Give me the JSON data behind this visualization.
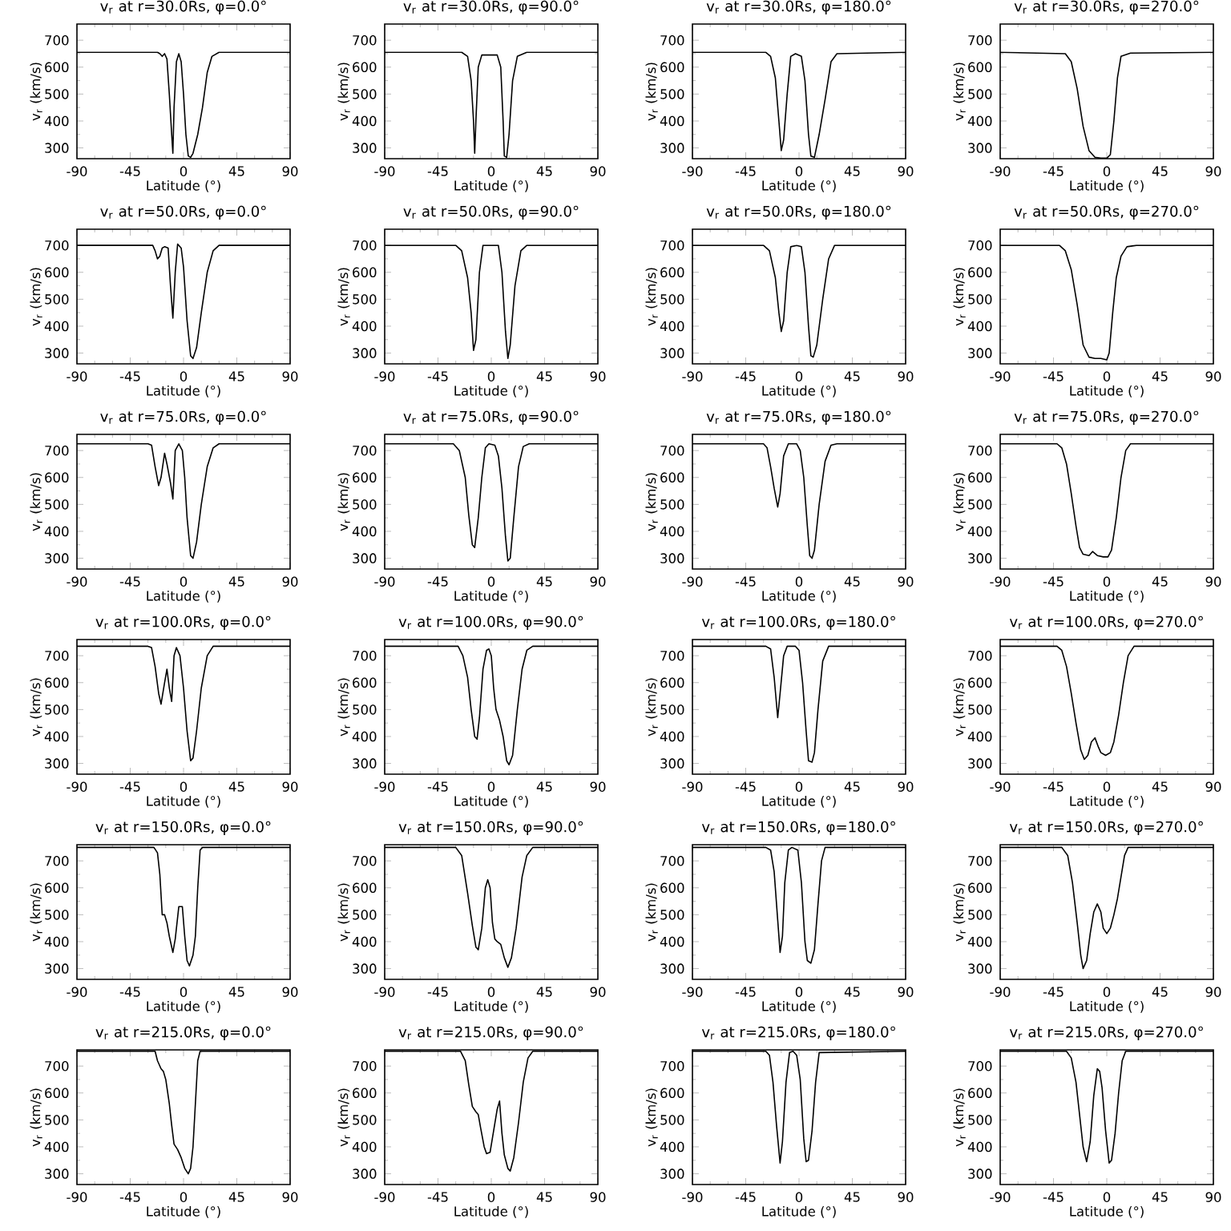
{
  "chart_data": [
    {
      "type": "line",
      "title": "v$_{r}$ at r=30.0Rs, φ=0.0°",
      "xlabel": "Latitude (°)",
      "ylabel": "v$_{r}$ (km/s)",
      "xlim": [
        -90,
        90
      ],
      "ylim": [
        260,
        760
      ],
      "xticks": [
        -90,
        -45,
        0,
        45,
        90
      ],
      "yticks": [
        300,
        400,
        500,
        600,
        700
      ],
      "color": "#000000",
      "x": [
        -90,
        -22,
        -20,
        -18,
        -16,
        -14,
        -12,
        -10,
        -9,
        -8,
        -6,
        -4,
        -2,
        0,
        2,
        4,
        6,
        8,
        12,
        16,
        20,
        24,
        30,
        90
      ],
      "values": [
        655,
        655,
        650,
        640,
        650,
        630,
        500,
        350,
        280,
        450,
        620,
        650,
        620,
        500,
        350,
        270,
        265,
        280,
        350,
        450,
        580,
        640,
        655,
        655
      ]
    },
    {
      "type": "line",
      "title": "v$_{r}$ at r=30.0Rs, φ=90.0°",
      "xlabel": "Latitude (°)",
      "ylabel": "v$_{r}$ (km/s)",
      "xlim": [
        -90,
        90
      ],
      "ylim": [
        260,
        760
      ],
      "xticks": [
        -90,
        -45,
        0,
        45,
        90
      ],
      "yticks": [
        300,
        400,
        500,
        600,
        700
      ],
      "color": "#000000",
      "x": [
        -90,
        -25,
        -20,
        -17,
        -15,
        -14,
        -13,
        -11,
        -8,
        5,
        8,
        10,
        11,
        13,
        15,
        18,
        22,
        30,
        90
      ],
      "values": [
        655,
        655,
        640,
        550,
        400,
        280,
        400,
        600,
        645,
        645,
        600,
        400,
        270,
        265,
        350,
        550,
        640,
        655,
        655
      ]
    },
    {
      "type": "line",
      "title": "v$_{r}$ at r=30.0Rs, φ=180.0°",
      "xlabel": "Latitude (°)",
      "ylabel": "v$_{r}$ (km/s)",
      "xlim": [
        -90,
        90
      ],
      "ylim": [
        260,
        760
      ],
      "xticks": [
        -90,
        -45,
        0,
        45,
        90
      ],
      "yticks": [
        300,
        400,
        500,
        600,
        700
      ],
      "color": "#000000",
      "x": [
        -90,
        -28,
        -24,
        -20,
        -17,
        -15,
        -13,
        -10,
        -7,
        -3,
        2,
        5,
        8,
        10,
        13,
        17,
        22,
        27,
        32,
        90
      ],
      "values": [
        655,
        655,
        640,
        560,
        400,
        290,
        330,
        500,
        640,
        650,
        640,
        550,
        350,
        270,
        265,
        350,
        480,
        620,
        650,
        655
      ]
    },
    {
      "type": "line",
      "title": "v$_{r}$ at r=30.0Rs, φ=270.0°",
      "xlabel": "Latitude (°)",
      "ylabel": "v$_{r}$ (km/s)",
      "xlim": [
        -90,
        90
      ],
      "ylim": [
        260,
        760
      ],
      "xticks": [
        -90,
        -45,
        0,
        45,
        90
      ],
      "yticks": [
        300,
        400,
        500,
        600,
        700
      ],
      "color": "#000000",
      "x": [
        -90,
        -35,
        -30,
        -25,
        -20,
        -15,
        -10,
        -5,
        0,
        3,
        6,
        9,
        12,
        20,
        90
      ],
      "values": [
        655,
        650,
        620,
        520,
        380,
        290,
        265,
        262,
        262,
        275,
        400,
        560,
        640,
        652,
        655
      ]
    },
    {
      "type": "line",
      "title": "v$_{r}$ at r=50.0Rs, φ=0.0°",
      "xlabel": "Latitude (°)",
      "ylabel": "v$_{r}$ (km/s)",
      "xlim": [
        -90,
        90
      ],
      "ylim": [
        260,
        760
      ],
      "xticks": [
        -90,
        -45,
        0,
        45,
        90
      ],
      "yticks": [
        300,
        400,
        500,
        600,
        700
      ],
      "color": "#000000",
      "x": [
        -90,
        -26,
        -24,
        -22,
        -20,
        -18,
        -16,
        -13,
        -11,
        -9,
        -7,
        -5,
        -2,
        0,
        3,
        6,
        8,
        11,
        15,
        20,
        25,
        30,
        90
      ],
      "values": [
        700,
        700,
        680,
        650,
        660,
        690,
        695,
        690,
        550,
        430,
        600,
        705,
        690,
        620,
        420,
        290,
        280,
        320,
        450,
        600,
        680,
        700,
        700
      ]
    },
    {
      "type": "line",
      "title": "v$_{r}$ at r=50.0Rs, φ=90.0°",
      "xlabel": "Latitude (°)",
      "ylabel": "v$_{r}$ (km/s)",
      "xlim": [
        -90,
        90
      ],
      "ylim": [
        260,
        760
      ],
      "xticks": [
        -90,
        -45,
        0,
        45,
        90
      ],
      "yticks": [
        300,
        400,
        500,
        600,
        700
      ],
      "color": "#000000",
      "x": [
        -90,
        -30,
        -25,
        -20,
        -17,
        -15,
        -13,
        -10,
        -7,
        6,
        9,
        12,
        14,
        16,
        20,
        25,
        30,
        90
      ],
      "values": [
        700,
        700,
        680,
        580,
        450,
        310,
        350,
        600,
        700,
        700,
        600,
        380,
        280,
        330,
        550,
        680,
        700,
        700
      ]
    },
    {
      "type": "line",
      "title": "v$_{r}$ at r=50.0Rs, φ=180.0°",
      "xlabel": "Latitude (°)",
      "ylabel": "v$_{r}$ (km/s)",
      "xlim": [
        -90,
        90
      ],
      "ylim": [
        260,
        760
      ],
      "xticks": [
        -90,
        -45,
        0,
        45,
        90
      ],
      "yticks": [
        300,
        400,
        500,
        600,
        700
      ],
      "color": "#000000",
      "x": [
        -90,
        -30,
        -25,
        -20,
        -17,
        -15,
        -13,
        -10,
        -7,
        -2,
        2,
        5,
        8,
        10,
        12,
        15,
        20,
        25,
        30,
        90
      ],
      "values": [
        700,
        700,
        680,
        580,
        450,
        380,
        420,
        600,
        695,
        700,
        695,
        600,
        400,
        290,
        285,
        330,
        500,
        650,
        700,
        700
      ]
    },
    {
      "type": "line",
      "title": "v$_{r}$ at r=50.0Rs, φ=270.0°",
      "xlabel": "Latitude (°)",
      "ylabel": "v$_{r}$ (km/s)",
      "xlim": [
        -90,
        90
      ],
      "ylim": [
        260,
        760
      ],
      "xticks": [
        -90,
        -45,
        0,
        45,
        90
      ],
      "yticks": [
        300,
        400,
        500,
        600,
        700
      ],
      "color": "#000000",
      "x": [
        -90,
        -40,
        -35,
        -30,
        -25,
        -20,
        -15,
        -10,
        -5,
        0,
        2,
        5,
        8,
        12,
        17,
        25,
        90
      ],
      "values": [
        700,
        700,
        680,
        610,
        480,
        330,
        285,
        280,
        280,
        275,
        300,
        450,
        580,
        660,
        695,
        700,
        700
      ]
    },
    {
      "type": "line",
      "title": "v$_{r}$ at r=75.0Rs, φ=0.0°",
      "xlabel": "Latitude (°)",
      "ylabel": "v$_{r}$ (km/s)",
      "xlim": [
        -90,
        90
      ],
      "ylim": [
        260,
        760
      ],
      "xticks": [
        -90,
        -45,
        0,
        45,
        90
      ],
      "yticks": [
        300,
        400,
        500,
        600,
        700
      ],
      "color": "#000000",
      "x": [
        -90,
        -30,
        -27,
        -24,
        -21,
        -19,
        -16,
        -14,
        -11,
        -9,
        -7,
        -4,
        -1,
        1,
        3,
        6,
        8,
        11,
        15,
        20,
        25,
        30,
        90
      ],
      "values": [
        725,
        725,
        720,
        640,
        570,
        600,
        690,
        650,
        580,
        520,
        700,
        725,
        700,
        600,
        450,
        310,
        300,
        360,
        500,
        640,
        710,
        725,
        725
      ]
    },
    {
      "type": "line",
      "title": "v$_{r}$ at r=75.0Rs, φ=90.0°",
      "xlabel": "Latitude (°)",
      "ylabel": "v$_{r}$ (km/s)",
      "xlim": [
        -90,
        90
      ],
      "ylim": [
        260,
        760
      ],
      "xticks": [
        -90,
        -45,
        0,
        45,
        90
      ],
      "yticks": [
        300,
        400,
        500,
        600,
        700
      ],
      "color": "#000000",
      "x": [
        -90,
        -32,
        -27,
        -22,
        -19,
        -16,
        -14,
        -11,
        -8,
        -5,
        -2,
        3,
        6,
        9,
        12,
        14,
        16,
        19,
        23,
        27,
        32,
        90
      ],
      "values": [
        725,
        725,
        700,
        600,
        460,
        350,
        340,
        450,
        600,
        710,
        725,
        720,
        680,
        560,
        380,
        290,
        300,
        450,
        640,
        715,
        725,
        725
      ]
    },
    {
      "type": "line",
      "title": "v$_{r}$ at r=75.0Rs, φ=180.0°",
      "xlabel": "Latitude (°)",
      "ylabel": "v$_{r}$ (km/s)",
      "xlim": [
        -90,
        90
      ],
      "ylim": [
        260,
        760
      ],
      "xticks": [
        -90,
        -45,
        0,
        45,
        90
      ],
      "yticks": [
        300,
        400,
        500,
        600,
        700
      ],
      "color": "#000000",
      "x": [
        -90,
        -30,
        -27,
        -24,
        -21,
        -18,
        -16,
        -13,
        -9,
        -2,
        1,
        4,
        7,
        9,
        11,
        13,
        17,
        22,
        27,
        32,
        90
      ],
      "values": [
        725,
        725,
        710,
        640,
        560,
        490,
        540,
        680,
        725,
        725,
        700,
        600,
        420,
        310,
        300,
        330,
        500,
        660,
        720,
        725,
        725
      ]
    },
    {
      "type": "line",
      "title": "v$_{r}$ at r=75.0Rs, φ=270.0°",
      "xlabel": "Latitude (°)",
      "ylabel": "v$_{r}$ (km/s)",
      "xlim": [
        -90,
        90
      ],
      "ylim": [
        260,
        760
      ],
      "xticks": [
        -90,
        -45,
        0,
        45,
        90
      ],
      "yticks": [
        300,
        400,
        500,
        600,
        700
      ],
      "color": "#000000",
      "x": [
        -90,
        -42,
        -38,
        -34,
        -30,
        -26,
        -23,
        -20,
        -15,
        -12,
        -8,
        -3,
        1,
        4,
        8,
        12,
        16,
        20,
        90
      ],
      "values": [
        725,
        725,
        710,
        650,
        540,
        420,
        340,
        315,
        310,
        325,
        310,
        305,
        305,
        330,
        450,
        600,
        700,
        725,
        725
      ]
    },
    {
      "type": "line",
      "title": "v$_{r}$ at r=100.0Rs, φ=0.0°",
      "xlabel": "Latitude (°)",
      "ylabel": "v$_{r}$ (km/s)",
      "xlim": [
        -90,
        90
      ],
      "ylim": [
        260,
        760
      ],
      "xticks": [
        -90,
        -45,
        0,
        45,
        90
      ],
      "yticks": [
        300,
        400,
        500,
        600,
        700
      ],
      "color": "#000000",
      "x": [
        -90,
        -30,
        -27,
        -24,
        -21,
        -19,
        -16,
        -14,
        -12,
        -10,
        -8,
        -6,
        -3,
        0,
        3,
        6,
        8,
        11,
        15,
        20,
        25,
        90
      ],
      "values": [
        735,
        735,
        730,
        660,
        560,
        520,
        600,
        650,
        580,
        530,
        700,
        730,
        700,
        580,
        420,
        310,
        320,
        420,
        580,
        700,
        735,
        735
      ]
    },
    {
      "type": "line",
      "title": "v$_{r}$ at r=100.0Rs, φ=90.0°",
      "xlabel": "Latitude (°)",
      "ylabel": "v$_{r}$ (km/s)",
      "xlim": [
        -90,
        90
      ],
      "ylim": [
        260,
        760
      ],
      "xticks": [
        -90,
        -45,
        0,
        45,
        90
      ],
      "yticks": [
        300,
        400,
        500,
        600,
        700
      ],
      "color": "#000000",
      "x": [
        -90,
        -28,
        -24,
        -20,
        -17,
        -14,
        -12,
        -10,
        -7,
        -4,
        -2,
        0,
        2,
        4,
        7,
        10,
        13,
        15,
        18,
        22,
        26,
        30,
        35,
        90
      ],
      "values": [
        735,
        735,
        700,
        620,
        500,
        400,
        390,
        470,
        650,
        720,
        725,
        700,
        580,
        500,
        460,
        400,
        310,
        295,
        330,
        500,
        650,
        720,
        735,
        735
      ]
    },
    {
      "type": "line",
      "title": "v$_{r}$ at r=100.0Rs, φ=180.0°",
      "xlabel": "Latitude (°)",
      "ylabel": "v$_{r}$ (km/s)",
      "xlim": [
        -90,
        90
      ],
      "ylim": [
        260,
        760
      ],
      "xticks": [
        -90,
        -45,
        0,
        45,
        90
      ],
      "yticks": [
        300,
        400,
        500,
        600,
        700
      ],
      "color": "#000000",
      "x": [
        -90,
        -28,
        -24,
        -21,
        -18,
        -16,
        -13,
        -10,
        -3,
        0,
        3,
        6,
        8,
        11,
        13,
        16,
        20,
        25,
        90
      ],
      "values": [
        735,
        735,
        725,
        620,
        470,
        560,
        700,
        735,
        735,
        720,
        600,
        420,
        310,
        305,
        340,
        500,
        680,
        735,
        735
      ]
    },
    {
      "type": "line",
      "title": "v$_{r}$ at r=100.0Rs, φ=270.0°",
      "xlabel": "Latitude (°)",
      "ylabel": "v$_{r}$ (km/s)",
      "xlim": [
        -90,
        90
      ],
      "ylim": [
        260,
        760
      ],
      "xticks": [
        -90,
        -45,
        0,
        45,
        90
      ],
      "yticks": [
        300,
        400,
        500,
        600,
        700
      ],
      "color": "#000000",
      "x": [
        -90,
        -42,
        -38,
        -34,
        -30,
        -26,
        -22,
        -19,
        -16,
        -13,
        -10,
        -7,
        -5,
        -1,
        3,
        6,
        10,
        14,
        18,
        23,
        90
      ],
      "values": [
        735,
        735,
        720,
        660,
        560,
        450,
        350,
        315,
        330,
        380,
        395,
        360,
        340,
        330,
        340,
        380,
        480,
        600,
        700,
        735,
        735
      ]
    },
    {
      "type": "line",
      "title": "v$_{r}$ at r=150.0Rs, φ=0.0°",
      "xlabel": "Latitude (°)",
      "ylabel": "v$_{r}$ (km/s)",
      "xlim": [
        -90,
        90
      ],
      "ylim": [
        260,
        760
      ],
      "xticks": [
        -90,
        -45,
        0,
        45,
        90
      ],
      "yticks": [
        300,
        400,
        500,
        600,
        700
      ],
      "color": "#000000",
      "x": [
        -90,
        -25,
        -22,
        -20,
        -18,
        -16,
        -14,
        -12,
        -9,
        -7,
        -4,
        -1,
        1,
        3,
        5,
        8,
        10,
        12,
        14,
        16,
        90
      ],
      "values": [
        750,
        750,
        730,
        650,
        500,
        500,
        470,
        420,
        360,
        410,
        530,
        530,
        420,
        330,
        310,
        350,
        420,
        600,
        740,
        750,
        750
      ]
    },
    {
      "type": "line",
      "title": "v$_{r}$ at r=150.0Rs, φ=90.0°",
      "xlabel": "Latitude (°)",
      "ylabel": "v$_{r}$ (km/s)",
      "xlim": [
        -90,
        90
      ],
      "ylim": [
        260,
        760
      ],
      "xticks": [
        -90,
        -45,
        0,
        45,
        90
      ],
      "yticks": [
        300,
        400,
        500,
        600,
        700
      ],
      "color": "#000000",
      "x": [
        -90,
        -30,
        -25,
        -20,
        -16,
        -13,
        -11,
        -8,
        -5,
        -3,
        -1,
        1,
        3,
        5,
        8,
        11,
        14,
        17,
        21,
        26,
        30,
        35,
        90
      ],
      "values": [
        750,
        750,
        720,
        580,
        460,
        380,
        370,
        450,
        600,
        630,
        600,
        470,
        410,
        400,
        390,
        340,
        305,
        340,
        450,
        640,
        720,
        750,
        750
      ]
    },
    {
      "type": "line",
      "title": "v$_{r}$ at r=150.0Rs, φ=180.0°",
      "xlabel": "Latitude (°)",
      "ylabel": "v$_{r}$ (km/s)",
      "xlim": [
        -90,
        90
      ],
      "ylim": [
        260,
        760
      ],
      "xticks": [
        -90,
        -45,
        0,
        45,
        90
      ],
      "yticks": [
        300,
        400,
        500,
        600,
        700
      ],
      "color": "#000000",
      "x": [
        -90,
        -28,
        -24,
        -21,
        -18,
        -16,
        -14,
        -12,
        -9,
        -6,
        -1,
        2,
        5,
        7,
        10,
        13,
        16,
        19,
        22,
        90
      ],
      "values": [
        750,
        750,
        740,
        660,
        480,
        360,
        420,
        620,
        740,
        750,
        740,
        620,
        400,
        330,
        320,
        370,
        540,
        700,
        750,
        750
      ]
    },
    {
      "type": "line",
      "title": "v$_{r}$ at r=150.0Rs, φ=270.0°",
      "xlabel": "Latitude (°)",
      "ylabel": "v$_{r}$ (km/s)",
      "xlim": [
        -90,
        90
      ],
      "ylim": [
        260,
        760
      ],
      "xticks": [
        -90,
        -45,
        0,
        45,
        90
      ],
      "yticks": [
        300,
        400,
        500,
        600,
        700
      ],
      "color": "#000000",
      "x": [
        -90,
        -38,
        -33,
        -29,
        -25,
        -22,
        -20,
        -17,
        -14,
        -11,
        -8,
        -5,
        -3,
        0,
        3,
        6,
        9,
        12,
        15,
        18,
        90
      ],
      "values": [
        750,
        750,
        720,
        620,
        470,
        350,
        300,
        330,
        430,
        510,
        540,
        510,
        450,
        430,
        450,
        500,
        560,
        640,
        720,
        750,
        750
      ]
    },
    {
      "type": "line",
      "title": "v$_{r}$ at r=215.0Rs, φ=0.0°",
      "xlabel": "Latitude (°)",
      "ylabel": "v$_{r}$ (km/s)",
      "xlim": [
        -90,
        90
      ],
      "ylim": [
        260,
        760
      ],
      "xticks": [
        -90,
        -45,
        0,
        45,
        90
      ],
      "yticks": [
        300,
        400,
        500,
        600,
        700
      ],
      "color": "#000000",
      "x": [
        -90,
        -24,
        -22,
        -19,
        -17,
        -15,
        -12,
        -10,
        -8,
        -5,
        -2,
        1,
        4,
        6,
        8,
        10,
        12,
        14,
        90
      ],
      "values": [
        755,
        755,
        720,
        690,
        680,
        650,
        560,
        480,
        410,
        390,
        360,
        320,
        300,
        320,
        400,
        560,
        720,
        755,
        755
      ]
    },
    {
      "type": "line",
      "title": "v$_{r}$ at r=215.0Rs, φ=90.0°",
      "xlabel": "Latitude (°)",
      "ylabel": "v$_{r}$ (km/s)",
      "xlim": [
        -90,
        90
      ],
      "ylim": [
        260,
        760
      ],
      "xticks": [
        -90,
        -45,
        0,
        45,
        90
      ],
      "yticks": [
        300,
        400,
        500,
        600,
        700
      ],
      "color": "#000000",
      "x": [
        -90,
        -26,
        -22,
        -19,
        -16,
        -13,
        -11,
        -9,
        -6,
        -4,
        -1,
        2,
        5,
        7,
        9,
        11,
        14,
        16,
        19,
        23,
        27,
        31,
        35,
        90
      ],
      "values": [
        755,
        755,
        720,
        630,
        550,
        530,
        520,
        470,
        400,
        375,
        380,
        460,
        540,
        570,
        450,
        370,
        320,
        310,
        360,
        490,
        640,
        730,
        755,
        755
      ]
    },
    {
      "type": "line",
      "title": "v$_{r}$ at r=215.0Rs, φ=180.0°",
      "xlabel": "Latitude (°)",
      "ylabel": "v$_{r}$ (km/s)",
      "xlim": [
        -90,
        90
      ],
      "ylim": [
        260,
        760
      ],
      "xticks": [
        -90,
        -45,
        0,
        45,
        90
      ],
      "yticks": [
        300,
        400,
        500,
        600,
        700
      ],
      "color": "#000000",
      "x": [
        -90,
        -28,
        -25,
        -22,
        -19,
        -16,
        -14,
        -11,
        -8,
        -5,
        -2,
        1,
        4,
        6,
        8,
        11,
        14,
        17,
        90
      ],
      "values": [
        755,
        755,
        740,
        640,
        480,
        340,
        420,
        640,
        750,
        755,
        740,
        650,
        430,
        345,
        350,
        460,
        640,
        750,
        755
      ]
    },
    {
      "type": "line",
      "title": "v$_{r}$ at r=215.0Rs, φ=270.0°",
      "xlabel": "Latitude (°)",
      "ylabel": "v$_{r}$ (km/s)",
      "xlim": [
        -90,
        90
      ],
      "ylim": [
        260,
        760
      ],
      "xticks": [
        -90,
        -45,
        0,
        45,
        90
      ],
      "yticks": [
        300,
        400,
        500,
        600,
        700
      ],
      "color": "#000000",
      "x": [
        -90,
        -34,
        -30,
        -26,
        -23,
        -20,
        -17,
        -14,
        -11,
        -8,
        -6,
        -4,
        -1,
        2,
        4,
        7,
        10,
        13,
        16,
        90
      ],
      "values": [
        755,
        755,
        730,
        640,
        520,
        400,
        345,
        420,
        590,
        690,
        680,
        620,
        460,
        340,
        350,
        450,
        600,
        720,
        755,
        755
      ]
    }
  ]
}
